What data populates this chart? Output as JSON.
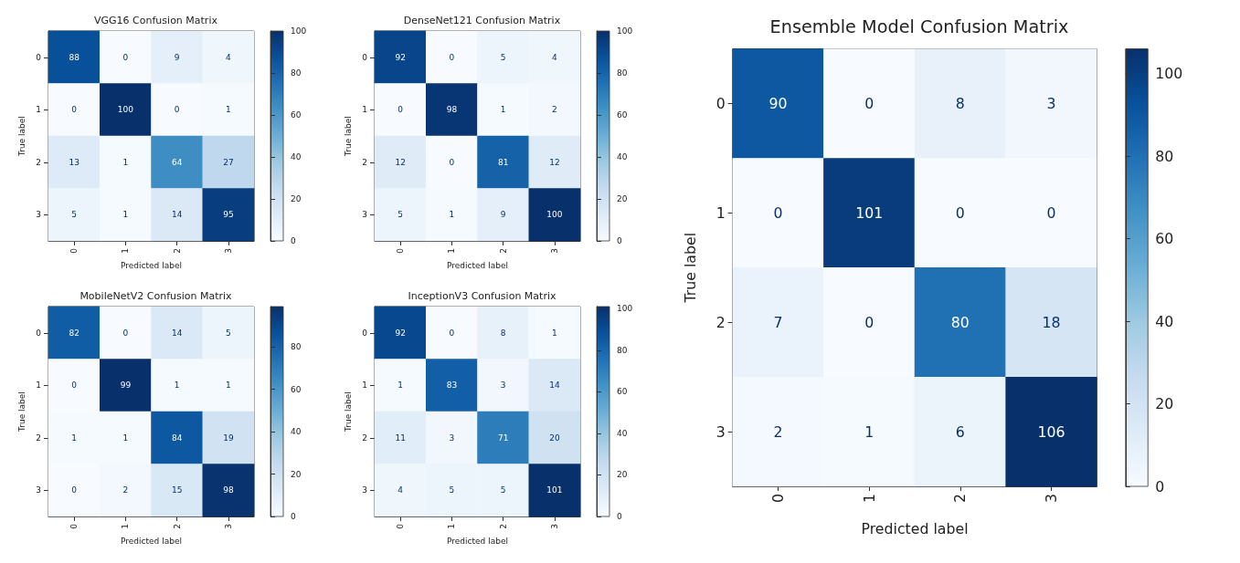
{
  "chart_data": [
    {
      "type": "heatmap",
      "title": "VGG16 Confusion Matrix",
      "xlabel": "Predicted label",
      "ylabel": "True label",
      "categories": [
        "0",
        "1",
        "2",
        "3"
      ],
      "y_categories": [
        "0",
        "1",
        "2",
        "3"
      ],
      "cells": [
        [
          88,
          0,
          9,
          4
        ],
        [
          0,
          100,
          0,
          1
        ],
        [
          13,
          1,
          64,
          27
        ],
        [
          5,
          1,
          14,
          95
        ]
      ],
      "clim": [
        0,
        100
      ],
      "cticks": [
        0,
        20,
        40,
        60,
        80,
        100
      ],
      "data_labels": true
    },
    {
      "type": "heatmap",
      "title": "DenseNet121 Confusion Matrix",
      "xlabel": "Predicted label",
      "ylabel": "True label",
      "categories": [
        "0",
        "1",
        "2",
        "3"
      ],
      "y_categories": [
        "0",
        "1",
        "2",
        "3"
      ],
      "cells": [
        [
          92,
          0,
          5,
          4
        ],
        [
          0,
          98,
          1,
          2
        ],
        [
          12,
          0,
          81,
          12
        ],
        [
          5,
          1,
          9,
          100
        ]
      ],
      "clim": [
        0,
        100
      ],
      "cticks": [
        0,
        20,
        40,
        60,
        80,
        100
      ],
      "data_labels": true
    },
    {
      "type": "heatmap",
      "title": "MobileNetV2 Confusion Matrix",
      "xlabel": "Predicted label",
      "ylabel": "True label",
      "categories": [
        "0",
        "1",
        "2",
        "3"
      ],
      "y_categories": [
        "0",
        "1",
        "2",
        "3"
      ],
      "cells": [
        [
          82,
          0,
          14,
          5
        ],
        [
          0,
          99,
          1,
          1
        ],
        [
          1,
          1,
          84,
          19
        ],
        [
          0,
          2,
          15,
          98
        ]
      ],
      "clim": [
        0,
        99
      ],
      "cticks": [
        0,
        20,
        40,
        60,
        80
      ],
      "data_labels": true
    },
    {
      "type": "heatmap",
      "title": "InceptionV3 Confusion Matrix",
      "xlabel": "Predicted label",
      "ylabel": "True label",
      "categories": [
        "0",
        "1",
        "2",
        "3"
      ],
      "y_categories": [
        "0",
        "1",
        "2",
        "3"
      ],
      "cells": [
        [
          92,
          0,
          8,
          1
        ],
        [
          1,
          83,
          3,
          14
        ],
        [
          11,
          3,
          71,
          20
        ],
        [
          4,
          5,
          5,
          101
        ]
      ],
      "clim": [
        0,
        101
      ],
      "cticks": [
        0,
        20,
        40,
        60,
        80,
        100
      ],
      "data_labels": true
    },
    {
      "type": "heatmap",
      "title": "Ensemble Model Confusion Matrix",
      "xlabel": "Predicted label",
      "ylabel": "True label",
      "categories": [
        "0",
        "1",
        "2",
        "3"
      ],
      "y_categories": [
        "0",
        "1",
        "2",
        "3"
      ],
      "cells": [
        [
          90,
          0,
          8,
          3
        ],
        [
          0,
          101,
          0,
          0
        ],
        [
          7,
          0,
          80,
          18
        ],
        [
          2,
          1,
          6,
          106
        ]
      ],
      "clim": [
        0,
        106
      ],
      "cticks": [
        0,
        20,
        40,
        60,
        80,
        100
      ],
      "data_labels": true
    }
  ]
}
